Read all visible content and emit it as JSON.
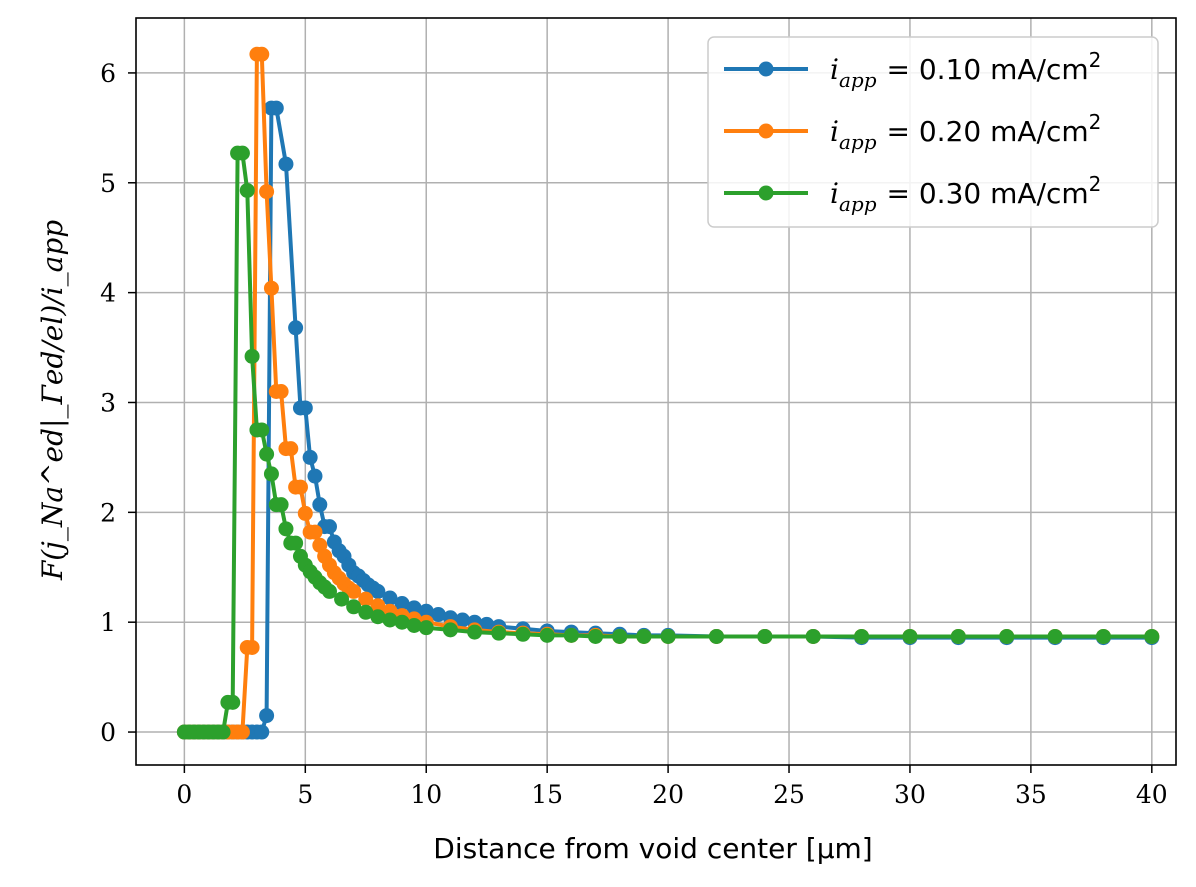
{
  "chart_data": {
    "type": "line",
    "title": "",
    "xlabel": "Distance from void center [μm]",
    "ylabel": "F(j_Na^ed|_Γed/el)/i_app",
    "xlim": [
      -2,
      41
    ],
    "ylim": [
      -0.3,
      6.5
    ],
    "grid": true,
    "legend_position": "top-right",
    "x_ticks": [
      0,
      5,
      10,
      15,
      20,
      25,
      30,
      35,
      40
    ],
    "y_ticks": [
      0,
      1,
      2,
      3,
      4,
      5,
      6
    ],
    "x_tick_labels": [
      "0",
      "5",
      "10",
      "15",
      "20",
      "25",
      "30",
      "35",
      "40"
    ],
    "y_tick_labels": [
      "0",
      "1",
      "2",
      "3",
      "4",
      "5",
      "6"
    ],
    "series": [
      {
        "name": "i_app = 0.10 mA/cm²",
        "legend_var": "i",
        "legend_sub": "app",
        "legend_value": "= 0.10 mA/cm",
        "legend_sup": "2",
        "color": "#1f77b4",
        "x": [
          0.0,
          0.2,
          0.4,
          0.6,
          0.8,
          1.0,
          1.2,
          1.4,
          1.6,
          1.8,
          2.0,
          2.2,
          2.4,
          2.6,
          2.8,
          3.0,
          3.2,
          3.4,
          3.6,
          3.8,
          4.2,
          4.6,
          4.8,
          5.0,
          5.2,
          5.4,
          5.6,
          5.8,
          6.0,
          6.2,
          6.4,
          6.6,
          6.8,
          7.0,
          7.2,
          7.4,
          7.6,
          7.8,
          8.0,
          8.5,
          9.0,
          9.5,
          10.0,
          10.5,
          11.0,
          11.5,
          12.0,
          12.5,
          13.0,
          14.0,
          15.0,
          16.0,
          17.0,
          18.0,
          19.0,
          20.0,
          22.0,
          24.0,
          26.0,
          28.0,
          30.0,
          32.0,
          34.0,
          36.0,
          38.0,
          40.0
        ],
        "y": [
          0,
          0,
          0,
          0,
          0,
          0,
          0,
          0,
          0,
          0,
          0,
          0,
          0,
          0,
          0,
          0,
          0,
          0.15,
          5.68,
          5.68,
          5.17,
          3.68,
          2.95,
          2.95,
          2.5,
          2.33,
          2.07,
          1.87,
          1.87,
          1.73,
          1.65,
          1.6,
          1.52,
          1.45,
          1.42,
          1.38,
          1.34,
          1.31,
          1.28,
          1.22,
          1.17,
          1.13,
          1.1,
          1.07,
          1.04,
          1.02,
          1.0,
          0.98,
          0.96,
          0.94,
          0.92,
          0.91,
          0.9,
          0.89,
          0.88,
          0.88,
          0.87,
          0.87,
          0.87,
          0.86,
          0.86,
          0.86,
          0.86,
          0.86,
          0.86,
          0.86
        ]
      },
      {
        "name": "i_app = 0.20 mA/cm²",
        "legend_var": "i",
        "legend_sub": "app",
        "legend_value": "= 0.20 mA/cm",
        "legend_sup": "2",
        "color": "#ff7f0e",
        "x": [
          0.0,
          0.2,
          0.4,
          0.6,
          0.8,
          1.0,
          1.2,
          1.4,
          1.6,
          1.8,
          2.0,
          2.2,
          2.4,
          2.6,
          2.8,
          3.0,
          3.2,
          3.4,
          3.6,
          3.8,
          4.0,
          4.2,
          4.4,
          4.6,
          4.8,
          5.0,
          5.2,
          5.4,
          5.6,
          5.8,
          6.0,
          6.2,
          6.4,
          6.6,
          6.8,
          7.0,
          7.5,
          8.0,
          8.5,
          9.0,
          9.5,
          10.0,
          11.0,
          12.0,
          13.0,
          14.0,
          15.0,
          16.0,
          17.0,
          18.0,
          19.0,
          20.0,
          22.0,
          24.0,
          26.0,
          28.0,
          30.0,
          32.0,
          34.0,
          36.0,
          38.0,
          40.0
        ],
        "y": [
          0,
          0,
          0,
          0,
          0,
          0,
          0,
          0,
          0,
          0,
          0,
          0,
          0,
          0.77,
          0.77,
          6.17,
          6.17,
          4.92,
          4.04,
          3.1,
          3.1,
          2.58,
          2.58,
          2.23,
          2.23,
          1.99,
          1.82,
          1.82,
          1.7,
          1.6,
          1.52,
          1.45,
          1.4,
          1.35,
          1.31,
          1.28,
          1.21,
          1.15,
          1.1,
          1.06,
          1.03,
          1.0,
          0.96,
          0.93,
          0.91,
          0.9,
          0.89,
          0.88,
          0.88,
          0.87,
          0.87,
          0.87,
          0.87,
          0.87,
          0.87,
          0.87,
          0.87,
          0.87,
          0.87,
          0.87,
          0.87,
          0.87
        ]
      },
      {
        "name": "i_app = 0.30 mA/cm²",
        "legend_var": "i",
        "legend_sub": "app",
        "legend_value": "= 0.30 mA/cm",
        "legend_sup": "2",
        "color": "#2ca02c",
        "x": [
          0.0,
          0.2,
          0.4,
          0.6,
          0.8,
          1.0,
          1.2,
          1.4,
          1.6,
          1.8,
          2.0,
          2.2,
          2.4,
          2.6,
          2.8,
          3.0,
          3.2,
          3.4,
          3.6,
          3.8,
          4.0,
          4.2,
          4.4,
          4.6,
          4.8,
          5.0,
          5.2,
          5.4,
          5.6,
          5.8,
          6.0,
          6.5,
          7.0,
          7.5,
          8.0,
          8.5,
          9.0,
          9.5,
          10.0,
          11.0,
          12.0,
          13.0,
          14.0,
          15.0,
          16.0,
          17.0,
          18.0,
          19.0,
          20.0,
          22.0,
          24.0,
          26.0,
          28.0,
          30.0,
          32.0,
          34.0,
          36.0,
          38.0,
          40.0
        ],
        "y": [
          0,
          0,
          0,
          0,
          0,
          0,
          0,
          0,
          0,
          0.27,
          0.27,
          5.27,
          5.27,
          4.93,
          3.42,
          2.75,
          2.75,
          2.53,
          2.35,
          2.07,
          2.07,
          1.85,
          1.72,
          1.72,
          1.6,
          1.52,
          1.46,
          1.41,
          1.36,
          1.32,
          1.28,
          1.21,
          1.14,
          1.09,
          1.05,
          1.02,
          1.0,
          0.97,
          0.95,
          0.93,
          0.91,
          0.9,
          0.89,
          0.88,
          0.88,
          0.87,
          0.87,
          0.87,
          0.87,
          0.87,
          0.87,
          0.87,
          0.87,
          0.87,
          0.87,
          0.87,
          0.87,
          0.87,
          0.87
        ]
      }
    ]
  }
}
